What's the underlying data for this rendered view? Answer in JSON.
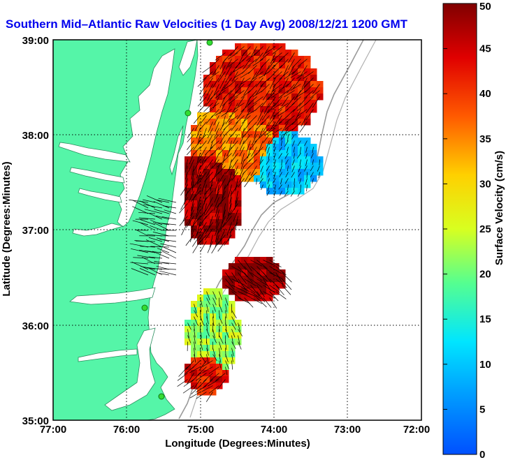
{
  "title": "Southern Mid–Atlantic Raw Velocities (1 Day Avg) 2008/12/21 1200 GMT",
  "x_axis": {
    "label": "Longitude (Degrees:Minutes)",
    "ticks": [
      "77:00",
      "76:00",
      "75:00",
      "74:00",
      "73:00",
      "72:00"
    ]
  },
  "y_axis": {
    "label": "Latitude (Degrees:Minutes)",
    "ticks": [
      "39:00",
      "38:00",
      "37:00",
      "36:00",
      "35:00"
    ]
  },
  "colorbar": {
    "label": "Surface Velocity (cm/s)",
    "ticks": [
      "50",
      "45",
      "40",
      "35",
      "30",
      "25",
      "20",
      "15",
      "10",
      "5",
      "0"
    ],
    "min": 0,
    "max": 50,
    "colormap": "jet"
  },
  "map": {
    "extent": {
      "lon_west": -77,
      "lon_east": -72,
      "lat_south": 35,
      "lat_north": 39
    },
    "land_color": "#55f5a8",
    "water_color": "#ffffff",
    "grid": "dotted",
    "radar_sites": [
      {
        "lat": 38.95,
        "lon": -75.1
      },
      {
        "lat": 38.3,
        "lon": -75.15
      },
      {
        "lat": 36.2,
        "lon": -75.72
      },
      {
        "lat": 35.25,
        "lon": -75.52
      }
    ]
  }
}
